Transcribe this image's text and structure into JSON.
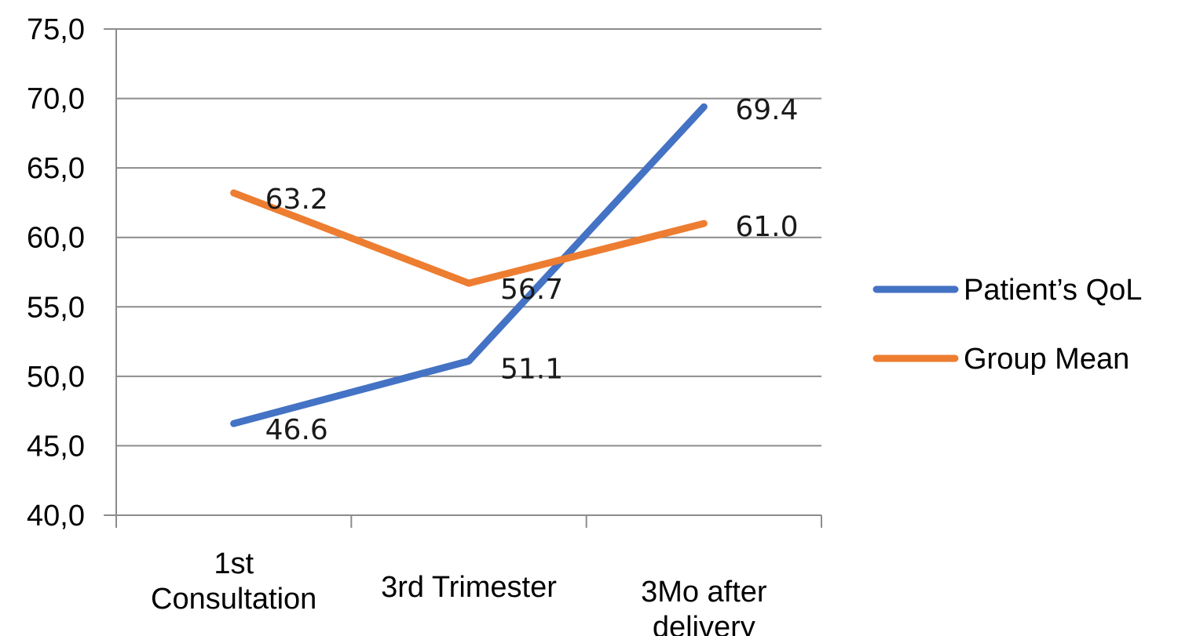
{
  "chart_data": {
    "type": "line",
    "title": "",
    "xlabel": "",
    "ylabel": "",
    "categories": [
      [
        "1st",
        "Consultation"
      ],
      [
        "3rd Trimester"
      ],
      [
        "3Mo after",
        "delivery"
      ]
    ],
    "series": [
      {
        "name": "Patient’s QoL",
        "color": "#4472C4",
        "values": [
          46.6,
          51.1,
          69.4
        ],
        "labels": [
          "46.6",
          "51.1",
          "69.4"
        ]
      },
      {
        "name": "Group Mean",
        "color": "#ED7D31",
        "values": [
          63.2,
          56.7,
          61.0
        ],
        "labels": [
          "63.2",
          "56.7",
          "61.0"
        ]
      }
    ],
    "ylim": [
      40,
      75
    ],
    "yticks": [
      40,
      45,
      50,
      55,
      60,
      65,
      70,
      75
    ],
    "ytick_labels": [
      "40,0",
      "45,0",
      "50,0",
      "55,0",
      "60,0",
      "65,0",
      "70,0",
      "75,0"
    ],
    "grid": true,
    "legend": "right"
  }
}
